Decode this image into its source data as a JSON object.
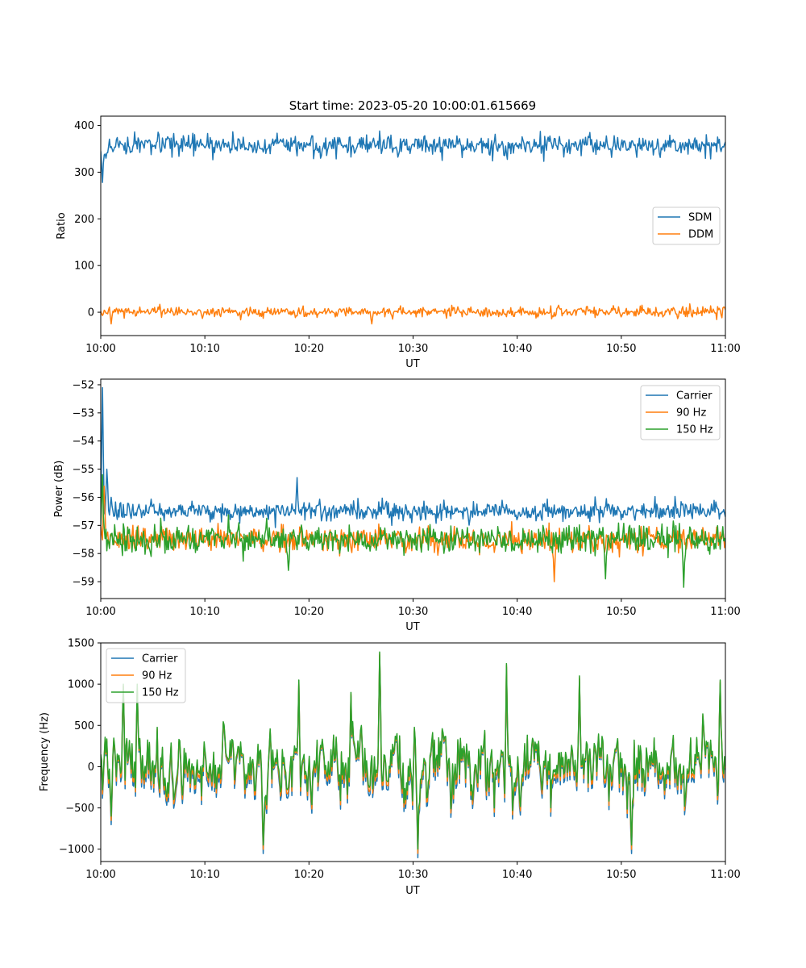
{
  "figure": {
    "title": "Start time: 2023-05-20 10:00:01.615669"
  },
  "chart_data": [
    {
      "type": "line",
      "xlabel": "UT",
      "ylabel": "Ratio",
      "x_ticks": [
        "10:00",
        "10:10",
        "10:20",
        "10:30",
        "10:40",
        "10:50",
        "11:00"
      ],
      "x_range_minutes": [
        0,
        60
      ],
      "ylim": [
        -50,
        420
      ],
      "y_ticks": [
        0,
        100,
        200,
        300,
        400
      ],
      "legend_position": "center-right",
      "series": [
        {
          "name": "SDM",
          "color": "#1f77b4",
          "approx_points": [
            [
              0,
              345
            ],
            [
              0.2,
              278
            ],
            [
              0.5,
              330
            ],
            [
              1,
              355
            ],
            [
              2,
              360
            ],
            [
              5,
              355
            ],
            [
              10,
              352
            ],
            [
              12,
              362
            ],
            [
              16,
              350
            ],
            [
              19,
              365
            ],
            [
              22,
              365
            ],
            [
              30,
              360
            ],
            [
              35,
              350
            ],
            [
              40,
              355
            ],
            [
              43,
              375
            ],
            [
              47,
              385
            ],
            [
              50,
              360
            ],
            [
              55,
              370
            ],
            [
              60,
              365
            ]
          ],
          "summary": {
            "mean": 357,
            "noise_amplitude": 20,
            "min": 278,
            "max": 402
          }
        },
        {
          "name": "DDM",
          "color": "#ff7f0e",
          "approx_points": [
            [
              0,
              2
            ],
            [
              1,
              -25
            ],
            [
              5,
              8
            ],
            [
              10,
              0
            ],
            [
              20,
              -5
            ],
            [
              26,
              -25
            ],
            [
              30,
              3
            ],
            [
              40,
              0
            ],
            [
              44,
              15
            ],
            [
              50,
              -10
            ],
            [
              55,
              10
            ],
            [
              60,
              5
            ]
          ],
          "summary": {
            "mean": 0,
            "noise_amplitude": 10,
            "min": -28,
            "max": 20
          }
        }
      ]
    },
    {
      "type": "line",
      "xlabel": "UT",
      "ylabel": "Power (dB)",
      "x_ticks": [
        "10:00",
        "10:10",
        "10:20",
        "10:30",
        "10:40",
        "10:50",
        "11:00"
      ],
      "x_range_minutes": [
        0,
        60
      ],
      "ylim": [
        -59.6,
        -51.8
      ],
      "y_ticks": [
        -52,
        -53,
        -54,
        -55,
        -56,
        -57,
        -58,
        -59
      ],
      "legend_position": "top-right",
      "series": [
        {
          "name": "Carrier",
          "color": "#1f77b4",
          "approx_points": [
            [
              0,
              -56.5
            ],
            [
              0.2,
              -52.1
            ],
            [
              0.6,
              -55.0
            ],
            [
              1,
              -56.0
            ],
            [
              5,
              -56.3
            ],
            [
              10,
              -56.4
            ],
            [
              18.9,
              -55.3
            ],
            [
              20,
              -56.2
            ],
            [
              30,
              -56.4
            ],
            [
              40,
              -56.8
            ],
            [
              50,
              -56.8
            ],
            [
              60,
              -56.7
            ]
          ],
          "summary": {
            "mean": -56.5,
            "noise_amplitude": 0.3
          }
        },
        {
          "name": "90 Hz",
          "color": "#ff7f0e",
          "approx_points": [
            [
              0,
              -57.0
            ],
            [
              0.3,
              -55.6
            ],
            [
              1,
              -57.3
            ],
            [
              5,
              -57.5
            ],
            [
              10,
              -57.6
            ],
            [
              20,
              -57.3
            ],
            [
              30,
              -57.6
            ],
            [
              40,
              -57.6
            ],
            [
              43.6,
              -59.0
            ],
            [
              50,
              -57.5
            ],
            [
              60,
              -57.5
            ]
          ],
          "summary": {
            "mean": -57.5,
            "noise_amplitude": 0.4
          }
        },
        {
          "name": "150 Hz",
          "color": "#2ca02c",
          "approx_points": [
            [
              0,
              -57.0
            ],
            [
              0.2,
              -55.2
            ],
            [
              1,
              -57.3
            ],
            [
              5,
              -57.4
            ],
            [
              10,
              -57.4
            ],
            [
              18,
              -58.6
            ],
            [
              25,
              -57.3
            ],
            [
              30,
              -57.5
            ],
            [
              40,
              -57.7
            ],
            [
              48.5,
              -58.9
            ],
            [
              56,
              -59.2
            ],
            [
              60,
              -57.6
            ]
          ],
          "summary": {
            "mean": -57.5,
            "noise_amplitude": 0.45
          }
        }
      ]
    },
    {
      "type": "line",
      "xlabel": "UT",
      "ylabel": "Frequency (Hz)",
      "x_ticks": [
        "10:00",
        "10:10",
        "10:20",
        "10:30",
        "10:40",
        "10:50",
        "11:00"
      ],
      "x_range_minutes": [
        0,
        60
      ],
      "ylim": [
        -1150,
        1500
      ],
      "y_ticks": [
        -1000,
        -500,
        0,
        500,
        1000,
        1500
      ],
      "legend_position": "top-left",
      "series": [
        {
          "name": "Carrier",
          "color": "#1f77b4",
          "summary": {
            "mean": -60,
            "noise_amplitude": 380,
            "min": -1050,
            "max": 1300
          },
          "offset_from_150hz": -80
        },
        {
          "name": "90 Hz",
          "color": "#ff7f0e",
          "summary": {
            "mean": -20,
            "noise_amplitude": 380
          },
          "offset_from_150hz": -40
        },
        {
          "name": "150 Hz",
          "color": "#2ca02c",
          "approx_points": [
            [
              0,
              150
            ],
            [
              1,
              -600
            ],
            [
              2.2,
              1000
            ],
            [
              3.5,
              1000
            ],
            [
              7,
              -400
            ],
            [
              15.6,
              -950
            ],
            [
              19,
              1050
            ],
            [
              24,
              900
            ],
            [
              26.8,
              1390
            ],
            [
              30.5,
              -1000
            ],
            [
              39,
              1250
            ],
            [
              46,
              1100
            ],
            [
              51,
              -950
            ],
            [
              59.5,
              1050
            ],
            [
              60,
              0
            ]
          ],
          "summary": {
            "mean": 20,
            "noise_amplitude": 380,
            "min": -1020,
            "max": 1390
          }
        }
      ]
    }
  ]
}
